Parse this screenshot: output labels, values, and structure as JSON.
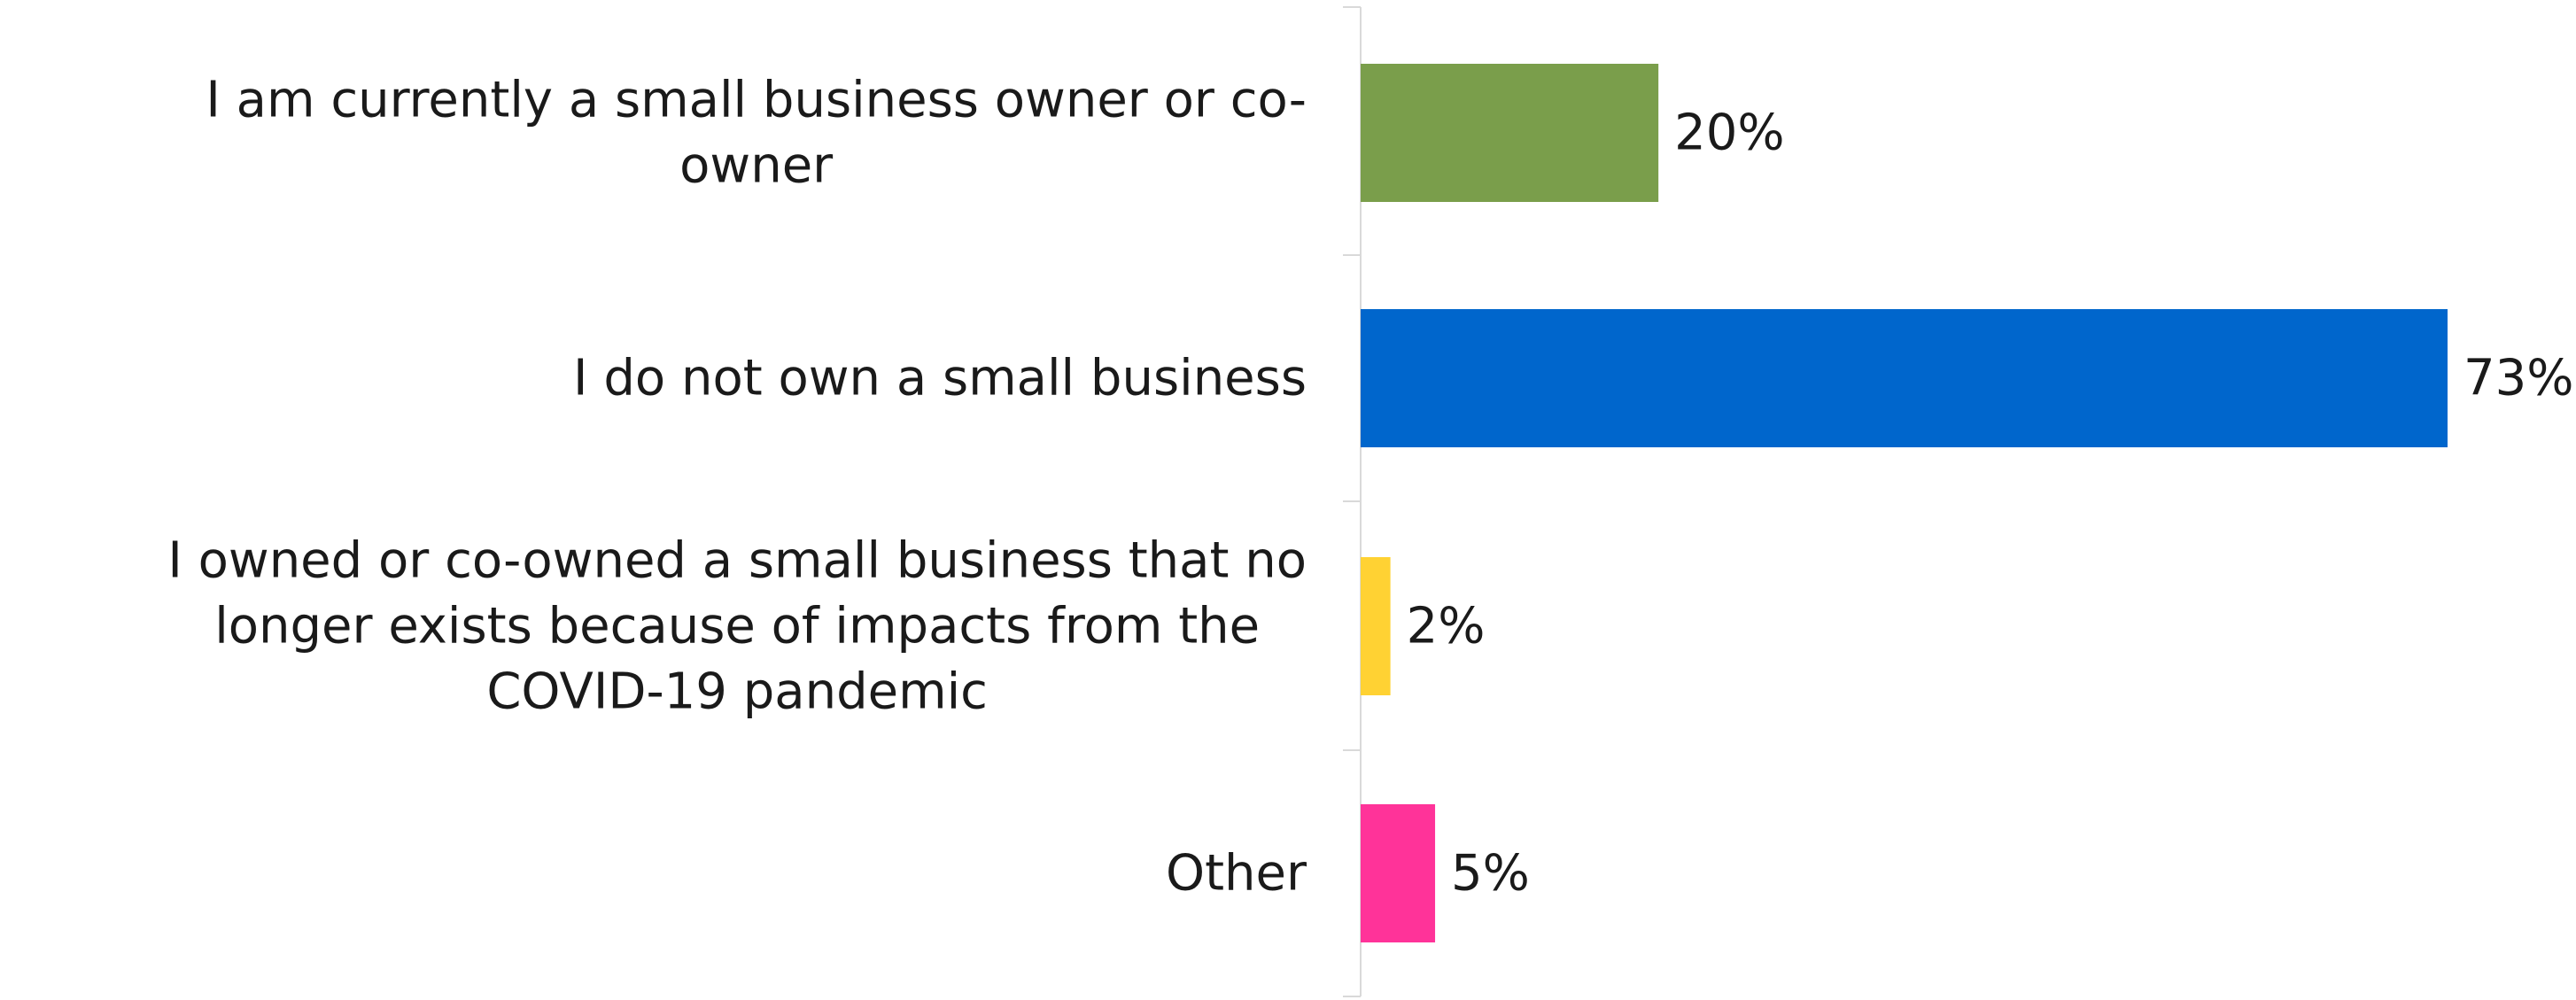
{
  "chart_data": {
    "type": "bar",
    "orientation": "horizontal",
    "categories": [
      "I am currently a small business owner or co-owner",
      "I do not own a small business",
      "I owned or co-owned a small business that no longer exists because of impacts from the COVID-19 pandemic",
      "Other"
    ],
    "category_label_lines": [
      [
        "I am currently a small business owner or co-",
        "owner"
      ],
      [
        "I do not own a small business"
      ],
      [
        "I owned or co-owned a small business that no",
        "longer exists because of impacts from the",
        "COVID-19 pandemic"
      ],
      [
        "Other"
      ]
    ],
    "values": [
      20,
      73,
      2,
      5
    ],
    "value_labels": [
      "20%",
      "73%",
      "2%",
      "5%"
    ],
    "unit": "%",
    "bar_colors": [
      "#7A9E4B",
      "#0066CC",
      "#FFD233",
      "#FF3399"
    ],
    "axis_line_color": "#d9d9d9",
    "xlim": [
      0,
      73
    ],
    "grid": false,
    "legend": "none",
    "title": "",
    "xlabel": "",
    "ylabel": ""
  }
}
